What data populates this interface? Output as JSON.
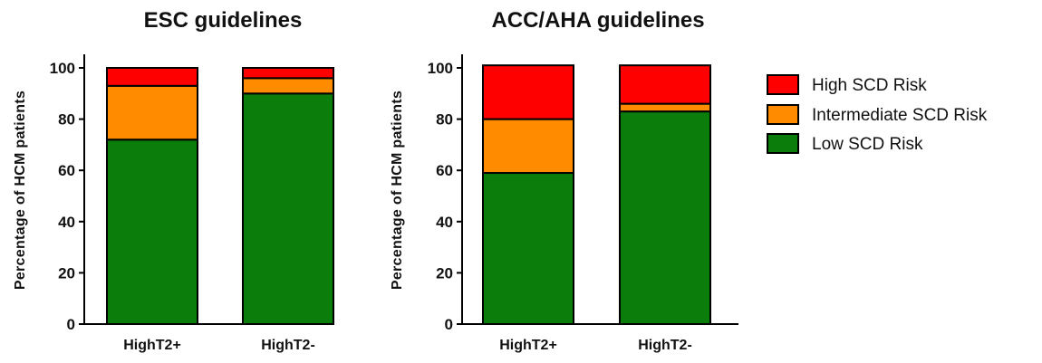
{
  "chart_data": [
    {
      "type": "bar",
      "stacked": true,
      "title": "ESC guidelines",
      "ylabel": "Percentage of HCM patients",
      "xlabel": "",
      "ylim": [
        0,
        100
      ],
      "yticks": [
        0,
        20,
        40,
        60,
        80,
        100
      ],
      "categories": [
        "HighT2+",
        "HighT2-"
      ],
      "series": [
        {
          "name": "Low SCD Risk",
          "color": "#0a7d0a",
          "values": [
            72,
            90
          ]
        },
        {
          "name": "Intermediate SCD Risk",
          "color": "#ff8c00",
          "values": [
            21,
            6
          ]
        },
        {
          "name": "High SCD Risk",
          "color": "#ff0000",
          "values": [
            7,
            4
          ]
        }
      ]
    },
    {
      "type": "bar",
      "stacked": true,
      "title": "ACC/AHA guidelines",
      "ylabel": "Percentage of HCM patients",
      "xlabel": "",
      "ylim": [
        0,
        100
      ],
      "yticks": [
        0,
        20,
        40,
        60,
        80,
        100
      ],
      "categories": [
        "HighT2+",
        "HighT2-"
      ],
      "series": [
        {
          "name": "Low SCD Risk",
          "color": "#0a7d0a",
          "values": [
            59,
            83
          ]
        },
        {
          "name": "Intermediate SCD Risk",
          "color": "#ff8c00",
          "values": [
            21,
            3
          ]
        },
        {
          "name": "High SCD Risk",
          "color": "#ff0000",
          "values": [
            21,
            15
          ]
        }
      ]
    }
  ],
  "legend": {
    "placement": "right",
    "items": [
      {
        "label": "High SCD Risk",
        "color": "#ff0000"
      },
      {
        "label": "Intermediate SCD Risk",
        "color": "#ff8c00"
      },
      {
        "label": "Low SCD Risk",
        "color": "#0a7d0a"
      }
    ]
  }
}
